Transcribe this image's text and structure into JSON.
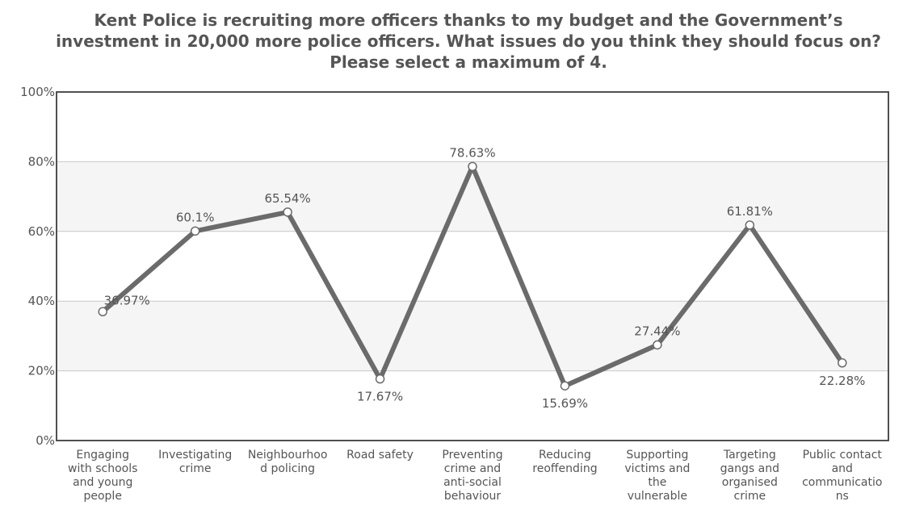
{
  "chart_data": {
    "type": "line",
    "title": "Kent Police is recruiting more officers thanks to my budget and the Government’s investment in 20,000 more police officers. What issues do you think they should focus on? Please select a maximum of 4.",
    "xlabel": "",
    "ylabel": "",
    "ylim": [
      0,
      100
    ],
    "y_ticks": [
      "0%",
      "20%",
      "40%",
      "60%",
      "80%",
      "100%"
    ],
    "grid": true,
    "legend": "none",
    "categories": [
      [
        "Engaging",
        "with schools",
        "and young",
        "people"
      ],
      [
        "Investigating",
        "crime"
      ],
      [
        "Neighbourhoo",
        "d policing"
      ],
      [
        "Road safety"
      ],
      [
        "Preventing",
        "crime and",
        "anti-social",
        "behaviour"
      ],
      [
        "Reducing",
        "reoffending"
      ],
      [
        "Supporting",
        "victims and",
        "the",
        "vulnerable"
      ],
      [
        "Targeting",
        "gangs and",
        "organised",
        "crime"
      ],
      [
        "Public contact",
        "and",
        "communicatio",
        "ns"
      ]
    ],
    "values": [
      36.97,
      60.1,
      65.54,
      17.67,
      78.63,
      15.69,
      27.44,
      61.81,
      22.28
    ],
    "value_labels": [
      "36.97%",
      "60.1%",
      "65.54%",
      "17.67%",
      "78.63%",
      "15.69%",
      "27.44%",
      "61.81%",
      "22.28%"
    ],
    "colors": {
      "line": "#6b6b6b",
      "marker_fill": "#ffffff",
      "band": "#f5f5f5",
      "grid": "#c8c8c8",
      "frame": "#505050",
      "text": "#555555"
    }
  }
}
